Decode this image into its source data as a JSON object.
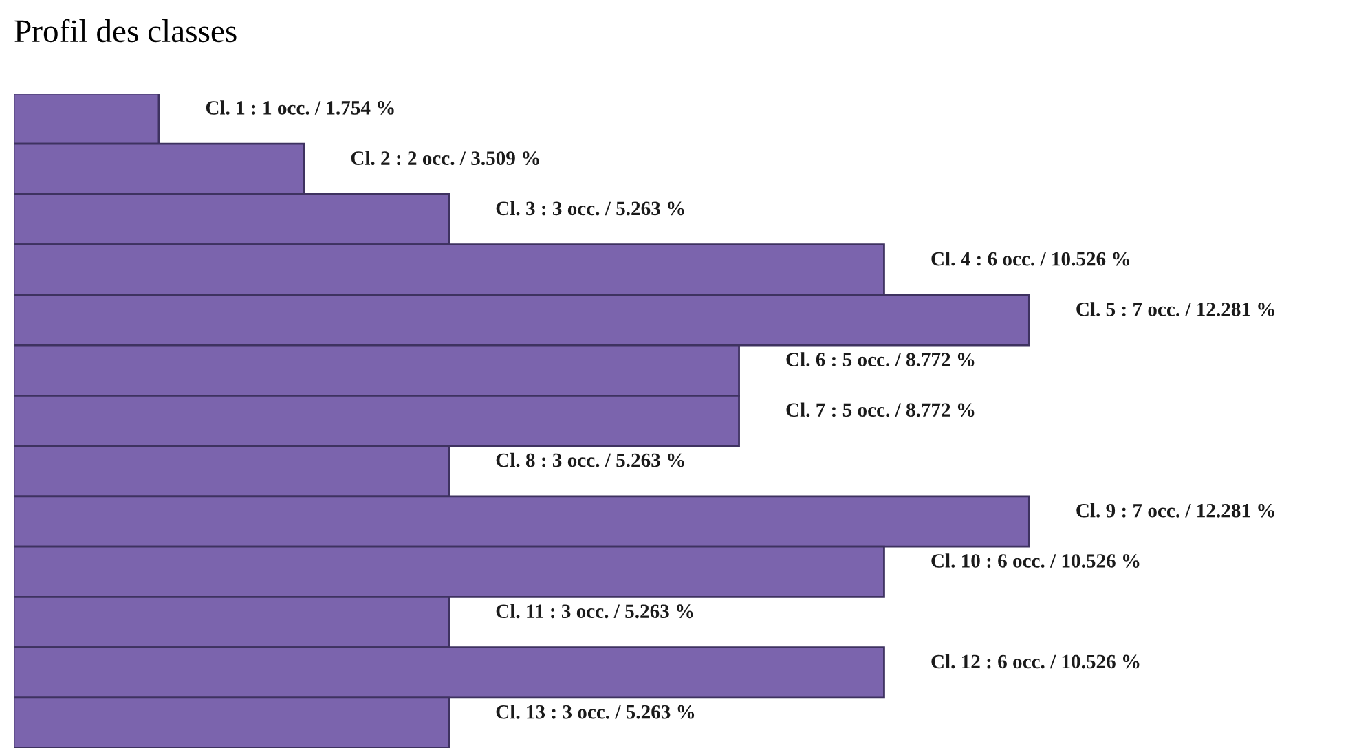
{
  "chart_data": {
    "type": "bar",
    "orientation": "horizontal",
    "title": "Profil des classes",
    "categories": [
      null,
      null,
      null,
      null,
      null,
      null,
      null,
      null,
      null,
      null,
      null,
      null,
      null
    ],
    "values": [
      1,
      2,
      3,
      6,
      7,
      5,
      5,
      3,
      7,
      6,
      3,
      6,
      3
    ],
    "value_labels": [
      "Cl. 1 : 1 occ. / 1.754 %",
      "Cl. 2 : 2 occ. / 3.509 %",
      "Cl. 3 : 3 occ. / 5.263 %",
      "Cl. 4 : 6 occ. / 10.526 %",
      "Cl. 5 : 7 occ. / 12.281 %",
      "Cl. 6 : 5 occ. / 8.772 %",
      "Cl. 7 : 5 occ. / 8.772 %",
      "Cl. 8 : 3 occ. / 5.263 %",
      "Cl. 9 : 7 occ. / 12.281 %",
      "Cl. 10 : 6 occ. / 10.526 %",
      "Cl. 11 : 3 occ. / 5.263 %",
      "Cl. 12 : 6 occ. / 10.526 %",
      "Cl. 13 : 3 occ. / 5.263 %"
    ],
    "color": "#7b64ad",
    "tick_labels": false
  }
}
